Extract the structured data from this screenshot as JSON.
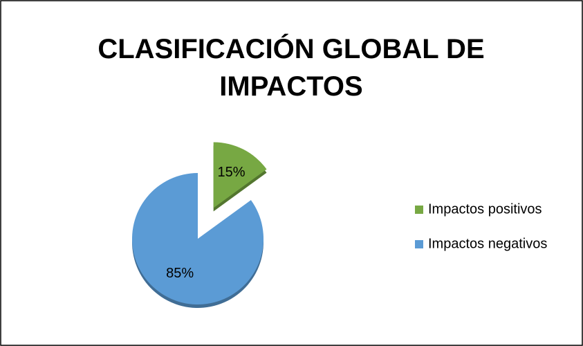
{
  "chart_data": {
    "type": "pie",
    "title": "CLASIFICACIÓN GLOBAL DE IMPACTOS",
    "categories": [
      "Impactos positivos",
      "Impactos negativos"
    ],
    "values": [
      15,
      85
    ],
    "value_labels": [
      "15%",
      "85%"
    ],
    "colors": [
      "#77a843",
      "#5b9bd5"
    ],
    "legend": "right"
  }
}
